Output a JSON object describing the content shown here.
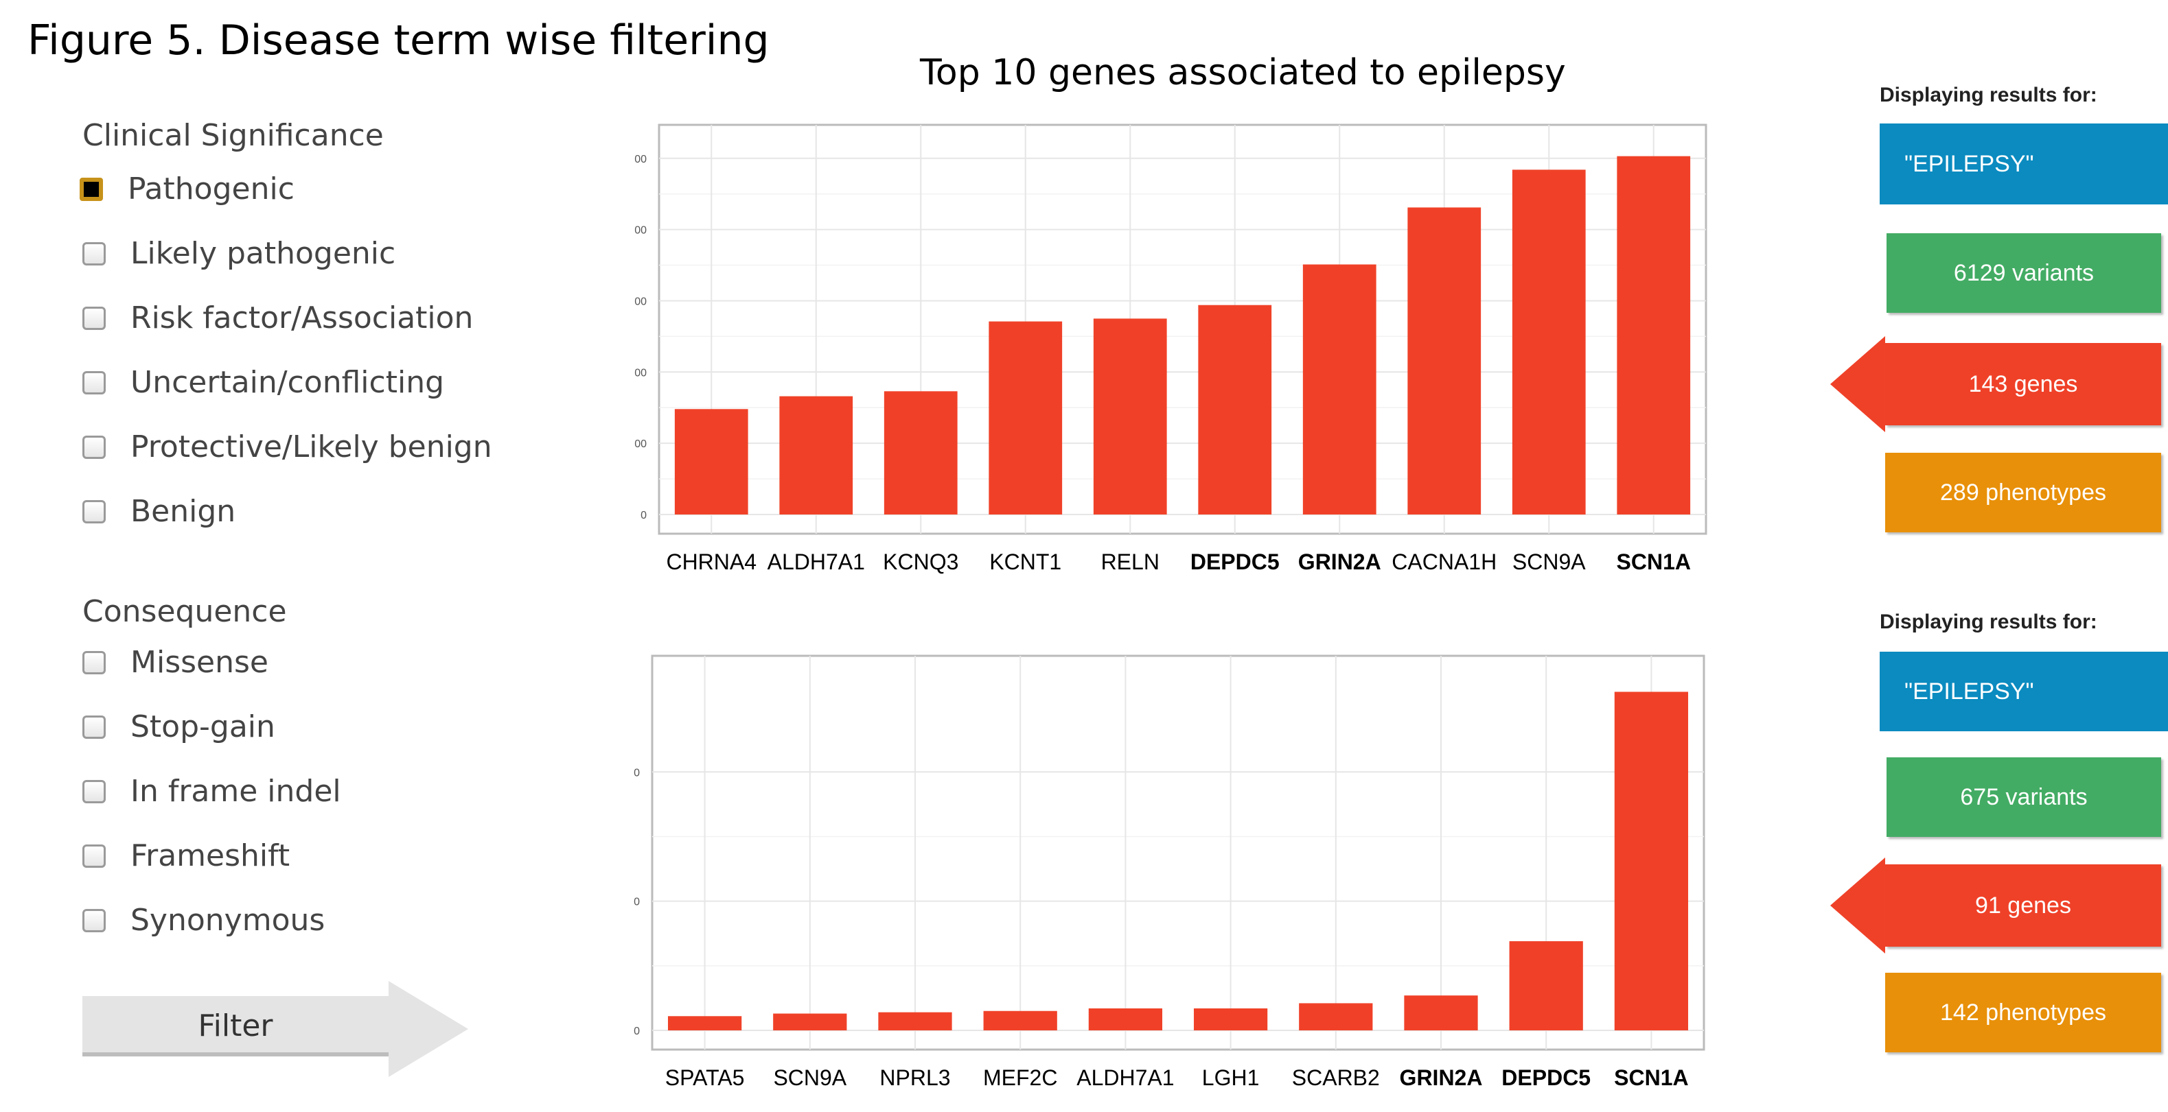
{
  "figure_title": "Figure 5. Disease term wise filtering",
  "chart_title": "Top 10 genes associated to epilepsy",
  "filters": {
    "clinical_heading": "Clinical Significance",
    "clinical_options": [
      {
        "label": "Pathogenic",
        "checked": true
      },
      {
        "label": "Likely pathogenic",
        "checked": false
      },
      {
        "label": "Risk factor/Association",
        "checked": false
      },
      {
        "label": "Uncertain/conflicting",
        "checked": false
      },
      {
        "label": "Protective/Likely benign",
        "checked": false
      },
      {
        "label": "Benign",
        "checked": false
      }
    ],
    "consequence_heading": "Consequence",
    "consequence_options": [
      {
        "label": "Missense",
        "checked": false
      },
      {
        "label": "Stop-gain",
        "checked": false
      },
      {
        "label": "In frame indel",
        "checked": false
      },
      {
        "label": "Frameshift",
        "checked": false
      },
      {
        "label": "Synonymous",
        "checked": false
      }
    ],
    "filter_label": "Filter"
  },
  "results": [
    {
      "label": "Displaying results for:",
      "query": "\"EPILEPSY\"",
      "variants": "6129 variants",
      "genes": "143 genes",
      "phenotypes": "289 phenotypes"
    },
    {
      "label": "Displaying results for:",
      "query": "\"EPILEPSY\"",
      "variants": "675 variants",
      "genes": "91 genes",
      "phenotypes": "142 phenotypes"
    }
  ],
  "colors": {
    "bar": "#f04128",
    "grid": "#e6e6e6",
    "frame": "#bbbbbb"
  },
  "chart_data": [
    {
      "type": "bar",
      "categories": [
        "CHRNA4",
        "ALDH7A1",
        "KCNQ3",
        "KCNT1",
        "RELN",
        "DEPDC5",
        "GRIN2A",
        "CACNA1H",
        "SCN9A",
        "SCN1A"
      ],
      "bold_categories": [
        "DEPDC5",
        "GRIN2A",
        "SCN1A"
      ],
      "values": [
        148,
        166,
        173,
        271,
        275,
        294,
        351,
        431,
        484,
        503
      ],
      "ylim": [
        0,
        520
      ],
      "yticks": [
        0,
        100,
        200,
        300,
        400,
        500
      ],
      "ytick_labels": [
        "0",
        "00",
        "00",
        "00",
        "00",
        "00"
      ],
      "grid": true
    },
    {
      "type": "bar",
      "categories": [
        "SPATA5",
        "SCN9A",
        "NPRL3",
        "MEF2C",
        "ALDH7A1",
        "LGH1",
        "SCARB2",
        "GRIN2A",
        "DEPDC5",
        "SCN1A"
      ],
      "bold_categories": [
        "GRIN2A",
        "DEPDC5",
        "SCN1A"
      ],
      "values": [
        11,
        13,
        14,
        15,
        17,
        17,
        21,
        27,
        69,
        262
      ],
      "ylim": [
        0,
        275
      ],
      "yticks": [
        0,
        100,
        200
      ],
      "ytick_labels": [
        "0",
        "0",
        "0"
      ],
      "grid": true
    }
  ]
}
